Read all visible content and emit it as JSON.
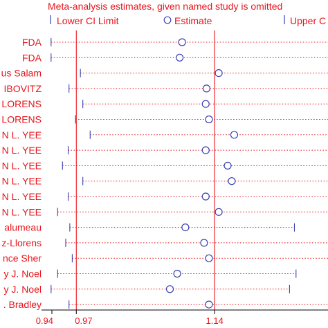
{
  "colors": {
    "text": "#e8141b",
    "marker": "#3a3fb0",
    "guide": "#e8141b",
    "dotted": "#e8141b",
    "axis": "#000000"
  },
  "chart_data": {
    "type": "forest",
    "title": "Meta-analysis estimates, given named study is omitted",
    "legend": {
      "position": "top",
      "items": [
        {
          "symbol": "|",
          "label": "Lower CI Limit"
        },
        {
          "symbol": "○",
          "label": "Estimate"
        },
        {
          "symbol": "|",
          "label": "Upper C"
        }
      ]
    },
    "x_ticks": [
      {
        "value": 0.94,
        "label": "0.94"
      },
      {
        "value": 0.97,
        "label": "0.97"
      },
      {
        "value": 1.14,
        "label": "1.14"
      }
    ],
    "reference_lines": [
      0.97,
      1.14
    ],
    "studies": [
      {
        "label": "FDA",
        "lower": 0.939,
        "estimate": 1.1,
        "upper": 1.28
      },
      {
        "label": "FDA",
        "lower": 0.939,
        "estimate": 1.097,
        "upper": 1.28
      },
      {
        "label": "us Salam",
        "lower": 0.975,
        "estimate": 1.145,
        "upper": null
      },
      {
        "label": "IBOVITZ",
        "lower": 0.961,
        "estimate": 1.13,
        "upper": null
      },
      {
        "label": "LORENS",
        "lower": 0.978,
        "estimate": 1.129,
        "upper": 1.285
      },
      {
        "label": "LORENS",
        "lower": 0.969,
        "estimate": 1.133,
        "upper": null
      },
      {
        "label": "N L. YEE",
        "lower": 0.987,
        "estimate": 1.164,
        "upper": null
      },
      {
        "label": "N L. YEE",
        "lower": 0.96,
        "estimate": 1.129,
        "upper": null
      },
      {
        "label": "N L. YEE",
        "lower": 0.953,
        "estimate": 1.156,
        "upper": null
      },
      {
        "label": "N L. YEE",
        "lower": 0.978,
        "estimate": 1.161,
        "upper": null
      },
      {
        "label": "N L. YEE",
        "lower": 0.96,
        "estimate": 1.129,
        "upper": null
      },
      {
        "label": "N L. YEE",
        "lower": 0.947,
        "estimate": 1.145,
        "upper": null
      },
      {
        "label": "alumeau",
        "lower": 0.962,
        "estimate": 1.104,
        "upper": 1.238
      },
      {
        "label": "z-Llorens",
        "lower": 0.957,
        "estimate": 1.127,
        "upper": null
      },
      {
        "label": "nce Sher",
        "lower": 0.965,
        "estimate": 1.133,
        "upper": null
      },
      {
        "label": "y J. Noel",
        "lower": 0.947,
        "estimate": 1.094,
        "upper": 1.24
      },
      {
        "label": "y J. Noel",
        "lower": 0.939,
        "estimate": 1.085,
        "upper": 1.232
      },
      {
        "label": ". Bradley",
        "lower": 0.961,
        "estimate": 1.133,
        "upper": null
      }
    ]
  }
}
